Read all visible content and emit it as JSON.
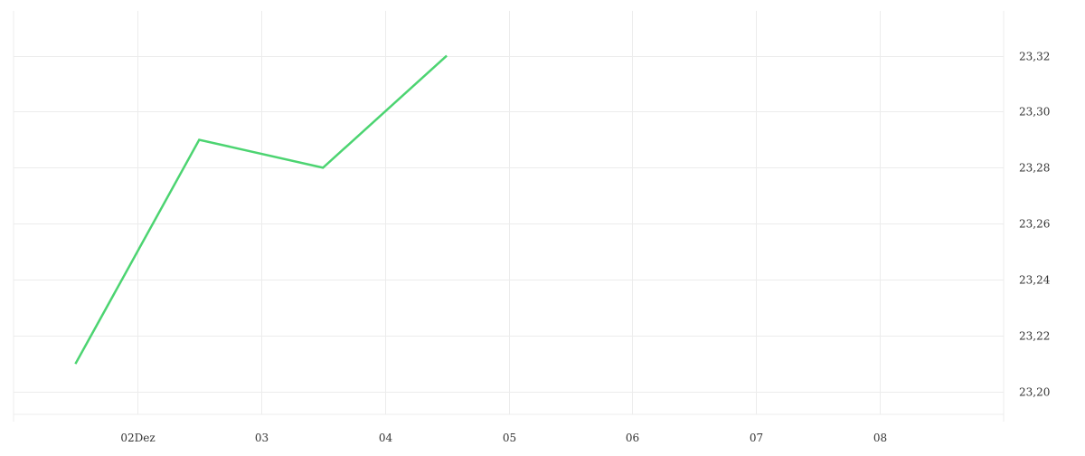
{
  "chart_data": {
    "type": "line",
    "x_tick_labels": [
      "02Dez",
      "03",
      "04",
      "05",
      "06",
      "07",
      "08"
    ],
    "x_ticks": [
      "2024-12-02",
      "2024-12-03",
      "2024-12-04",
      "2024-12-05",
      "2024-12-06",
      "2024-12-07",
      "2024-12-08"
    ],
    "xlim": [
      "2024-12-01",
      "2024-12-09"
    ],
    "y_tick_labels": [
      "23,20",
      "23,22",
      "23,24",
      "23,26",
      "23,28",
      "23,30",
      "23,32"
    ],
    "y_ticks": [
      23.2,
      23.22,
      23.24,
      23.26,
      23.28,
      23.3,
      23.32
    ],
    "ylim": [
      23.192,
      23.336
    ],
    "y_axis_side": "right",
    "grid": true,
    "series": [
      {
        "color": "#4cd471",
        "x": [
          "2024-12-01T12:00",
          "2024-12-02T12:00",
          "2024-12-03T12:00",
          "2024-12-04T12:00"
        ],
        "y": [
          23.21,
          23.29,
          23.28,
          23.32
        ]
      }
    ]
  }
}
